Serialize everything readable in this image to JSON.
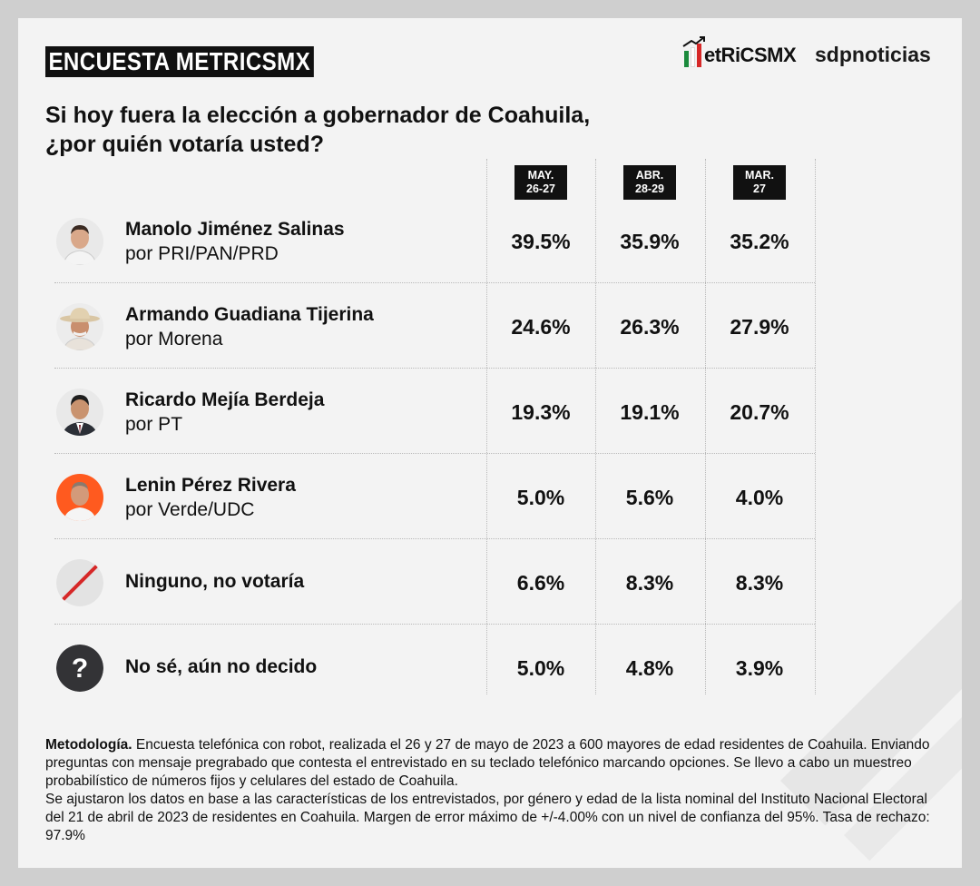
{
  "header": {
    "tag": "ENCUESTA METRICSMX",
    "logo_text": "etRiCSMX",
    "partner": "sdpnoticias"
  },
  "question": "Si hoy fuera la elección a gobernador de Coahuila, ¿por quién votaría usted?",
  "colors": {
    "green": "#1a8a3c",
    "red": "#d62828",
    "dark": "#111111",
    "orange": "#ff5a1f"
  },
  "chart_data": {
    "type": "table",
    "columns": [
      {
        "line1": "MAY.",
        "line2": "26-27"
      },
      {
        "line1": "ABR.",
        "line2": "28-29"
      },
      {
        "line1": "MAR.",
        "line2": "27"
      }
    ],
    "rows": [
      {
        "name": "Manolo Jiménez Salinas",
        "party": "por PRI/PAN/PRD",
        "icon": "candidate-photo",
        "values": [
          "39.5%",
          "35.9%",
          "35.2%"
        ]
      },
      {
        "name": "Armando Guadiana Tijerina",
        "party": "por Morena",
        "icon": "candidate-photo",
        "values": [
          "24.6%",
          "26.3%",
          "27.9%"
        ]
      },
      {
        "name": "Ricardo Mejía Berdeja",
        "party": "por PT",
        "icon": "candidate-photo",
        "values": [
          "19.3%",
          "19.1%",
          "20.7%"
        ]
      },
      {
        "name": "Lenin Pérez Rivera",
        "party": "por Verde/UDC",
        "icon": "candidate-photo",
        "values": [
          "5.0%",
          "5.6%",
          "4.0%"
        ]
      },
      {
        "name": "Ninguno, no votaría",
        "party": "",
        "icon": "slash-icon",
        "values": [
          "6.6%",
          "8.3%",
          "8.3%"
        ]
      },
      {
        "name": "No sé, aún no decido",
        "party": "",
        "icon": "question-icon",
        "values": [
          "5.0%",
          "4.8%",
          "3.9%"
        ]
      }
    ]
  },
  "methodology": {
    "label": "Metodología.",
    "text": "Encuesta telefónica con robot, realizada el 26 y 27 de mayo de 2023 a 600 mayores de edad residentes de Coahuila. Enviando preguntas con mensaje pregrabado que contesta el entrevistado en su teclado telefónico marcando opciones. Se llevo a cabo un muestreo probabilístico de números fijos y celulares del estado de Coahuila.",
    "text2": "Se ajustaron los datos en base a las características de los entrevistados, por género y edad de la lista nominal del Instituto Nacional Electoral del 21 de abril de 2023 de residentes en Coahuila. Margen de error máximo de +/-4.00% con un nivel de confianza del 95%. Tasa de rechazo: 97.9%"
  }
}
